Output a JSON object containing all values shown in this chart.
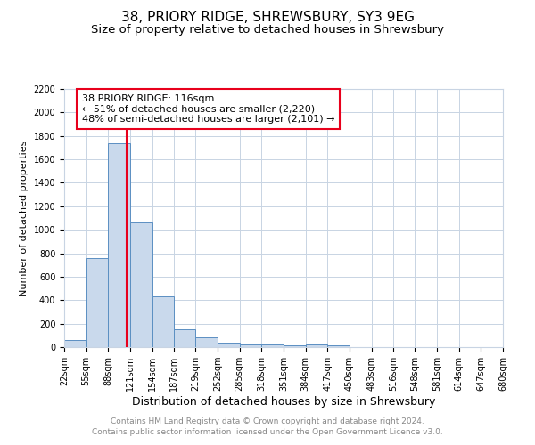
{
  "title": "38, PRIORY RIDGE, SHREWSBURY, SY3 9EG",
  "subtitle": "Size of property relative to detached houses in Shrewsbury",
  "xlabel": "Distribution of detached houses by size in Shrewsbury",
  "ylabel": "Number of detached properties",
  "footer_line1": "Contains HM Land Registry data © Crown copyright and database right 2024.",
  "footer_line2": "Contains public sector information licensed under the Open Government Licence v3.0.",
  "annotation_title": "38 PRIORY RIDGE: 116sqm",
  "annotation_line1": "← 51% of detached houses are smaller (2,220)",
  "annotation_line2": "48% of semi-detached houses are larger (2,101) →",
  "property_value": 116,
  "bar_edges": [
    22,
    55,
    88,
    121,
    154,
    187,
    219,
    252,
    285,
    318,
    351,
    384,
    417,
    450,
    483,
    516,
    548,
    581,
    614,
    647,
    680
  ],
  "bar_heights": [
    60,
    760,
    1740,
    1070,
    430,
    155,
    80,
    40,
    25,
    20,
    15,
    20,
    15,
    0,
    0,
    0,
    0,
    0,
    0,
    0
  ],
  "bar_color": "#c9d9ec",
  "bar_edge_color": "#5b8fc2",
  "red_line_color": "#e8001c",
  "grid_color": "#c8d4e3",
  "bg_color": "#ffffff",
  "ylim": [
    0,
    2200
  ],
  "yticks": [
    0,
    200,
    400,
    600,
    800,
    1000,
    1200,
    1400,
    1600,
    1800,
    2000,
    2200
  ],
  "annotation_box_color": "#ffffff",
  "annotation_box_edge": "#e8001c",
  "title_fontsize": 11,
  "subtitle_fontsize": 9.5,
  "xlabel_fontsize": 9,
  "ylabel_fontsize": 8,
  "tick_fontsize": 7,
  "annotation_fontsize": 8,
  "footer_fontsize": 6.5,
  "footer_color": "#888888"
}
